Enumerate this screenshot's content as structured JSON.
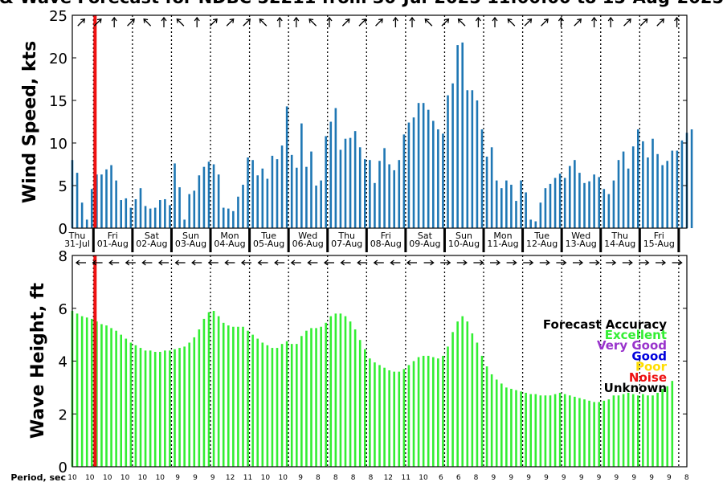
{
  "title": "& Wave Forecast for NDBC 52211 from 30-Jul-2025 11:00:00 to 15-Aug-2025",
  "colors": {
    "wind_bar": "#1f77b4",
    "wave_bar": "#33ee33",
    "now_line": "#ee1111",
    "excellent": "#33ee33",
    "very_good": "#9933cc",
    "good": "#0000dd",
    "poor": "#ffdd00",
    "noise": "#ee1111",
    "unknown": "#000000"
  },
  "legend": {
    "title": "Forecast Accuracy",
    "items": [
      {
        "label": "Excellent",
        "color": "#33ee33"
      },
      {
        "label": "Very Good",
        "color": "#9933cc"
      },
      {
        "label": "Good",
        "color": "#0000dd"
      },
      {
        "label": "Poor",
        "color": "#ffdd00"
      },
      {
        "label": "Noise",
        "color": "#ee1111"
      },
      {
        "label": "Unknown",
        "color": "#000000"
      }
    ]
  },
  "period_label": "Period, sec",
  "chart_data": [
    {
      "type": "bar",
      "name": "wind",
      "ylabel": "Wind Speed, kts",
      "ylim": [
        0,
        25
      ],
      "yticks": [
        0,
        5,
        10,
        15,
        20,
        25
      ],
      "x_unit": "hours since 30-Jul-2025 11:00 (3-hourly)",
      "days": [
        {
          "name": "Thu",
          "date": "31-Jul"
        },
        {
          "name": "Fri",
          "date": "01-Aug"
        },
        {
          "name": "Sat",
          "date": "02-Aug"
        },
        {
          "name": "Sun",
          "date": "03-Aug"
        },
        {
          "name": "Mon",
          "date": "04-Aug"
        },
        {
          "name": "Tue",
          "date": "05-Aug"
        },
        {
          "name": "Wed",
          "date": "06-Aug"
        },
        {
          "name": "Thu",
          "date": "07-Aug"
        },
        {
          "name": "Fri",
          "date": "08-Aug"
        },
        {
          "name": "Sat",
          "date": "09-Aug"
        },
        {
          "name": "Sun",
          "date": "10-Aug"
        },
        {
          "name": "Mon",
          "date": "11-Aug"
        },
        {
          "name": "Tue",
          "date": "12-Aug"
        },
        {
          "name": "Wed",
          "date": "13-Aug"
        },
        {
          "name": "Thu",
          "date": "14-Aug"
        },
        {
          "name": "Fri",
          "date": "15-Aug"
        }
      ],
      "values": [
        8.0,
        6.5,
        3.0,
        1.0,
        4.6,
        6.3,
        6.3,
        6.9,
        7.4,
        5.6,
        3.3,
        3.5,
        2.4,
        3.4,
        4.7,
        2.6,
        2.3,
        2.4,
        3.3,
        3.4,
        2.7,
        7.6,
        4.8,
        1.0,
        4.0,
        4.4,
        6.2,
        7.2,
        7.8,
        7.5,
        6.3,
        2.4,
        2.3,
        2.0,
        3.7,
        5.1,
        8.3,
        8.0,
        6.2,
        7.0,
        5.8,
        8.5,
        8.1,
        9.7,
        14.3,
        8.6,
        7.1,
        12.3,
        7.2,
        9.0,
        5.0,
        5.6,
        10.8,
        12.5,
        14.1,
        9.2,
        10.5,
        10.6,
        11.4,
        9.5,
        8.1,
        8.0,
        5.3,
        7.9,
        9.4,
        7.5,
        6.8,
        8.0,
        11.0,
        12.4,
        13.0,
        14.7,
        14.7,
        13.9,
        12.6,
        11.6,
        11.1,
        15.6,
        17.0,
        21.5,
        21.8,
        16.2,
        16.2,
        15.0,
        11.6,
        8.4,
        9.5,
        5.6,
        4.7,
        5.6,
        5.1,
        3.2,
        5.6,
        4.2,
        1.0,
        0.8,
        3.0,
        4.7,
        5.2,
        5.9,
        6.4,
        5.9,
        7.3,
        8.0,
        6.5,
        5.3,
        5.5,
        6.3,
        6.0,
        4.6,
        4.0,
        5.6,
        8.0,
        9.0,
        7.0,
        9.6,
        11.6,
        10.2,
        8.3,
        10.5,
        8.7,
        7.4,
        7.9,
        9.1,
        9.1,
        10.3,
        11.2,
        11.6
      ],
      "wind_dirs_deg": [
        225,
        225,
        180,
        225,
        135,
        180,
        135,
        180,
        225,
        225,
        225,
        135,
        180,
        180,
        135,
        180,
        225,
        225,
        225,
        180,
        180,
        135,
        225,
        135,
        180,
        180,
        135,
        225,
        225,
        180,
        225,
        180,
        180,
        225,
        225,
        225,
        180
      ]
    },
    {
      "type": "bar",
      "name": "wave",
      "ylabel": "Wave Height, ft",
      "ylim": [
        0,
        8
      ],
      "yticks": [
        0,
        2,
        4,
        6,
        8
      ],
      "x_unit": "hours since 30-Jul-2025 11:00 (3-hourly)",
      "values": [
        5.9,
        5.8,
        5.7,
        5.65,
        5.6,
        5.5,
        5.4,
        5.35,
        5.25,
        5.15,
        5.0,
        4.85,
        4.7,
        4.6,
        4.5,
        4.4,
        4.4,
        4.35,
        4.35,
        4.4,
        4.4,
        4.45,
        4.5,
        4.55,
        4.7,
        4.9,
        5.2,
        5.6,
        5.85,
        5.9,
        5.7,
        5.45,
        5.35,
        5.3,
        5.3,
        5.3,
        5.15,
        5.0,
        4.85,
        4.7,
        4.6,
        4.5,
        4.5,
        4.65,
        4.75,
        4.65,
        4.65,
        4.95,
        5.15,
        5.25,
        5.25,
        5.3,
        5.45,
        5.7,
        5.8,
        5.8,
        5.7,
        5.5,
        5.2,
        4.8,
        4.45,
        4.1,
        3.95,
        3.85,
        3.75,
        3.65,
        3.6,
        3.6,
        3.7,
        3.85,
        4.0,
        4.15,
        4.2,
        4.2,
        4.15,
        4.1,
        4.2,
        4.55,
        5.1,
        5.5,
        5.7,
        5.5,
        5.05,
        4.7,
        4.2,
        3.8,
        3.5,
        3.3,
        3.15,
        3.0,
        2.95,
        2.9,
        2.85,
        2.8,
        2.75,
        2.75,
        2.7,
        2.7,
        2.7,
        2.75,
        2.8,
        2.75,
        2.7,
        2.65,
        2.6,
        2.55,
        2.5,
        2.45,
        2.45,
        2.5,
        2.55,
        2.7,
        2.7,
        2.75,
        2.8,
        2.75,
        2.7,
        2.75,
        2.7,
        2.7,
        2.8,
        2.95,
        3.05,
        3.25
      ],
      "period_values": [
        "10",
        "10",
        "10",
        "10",
        "10",
        "10",
        "9",
        "9",
        "9",
        "12",
        "11",
        "10",
        "10",
        "9",
        "8",
        "8",
        "8",
        "8",
        "12",
        "11",
        "10",
        "6",
        "6",
        "8",
        "9",
        "9",
        "9",
        "9",
        "9",
        "9",
        "9",
        "9",
        "9",
        "9",
        "9",
        "8"
      ],
      "wave_dirs_deg": [
        90,
        90,
        90,
        90,
        90,
        90,
        90,
        90,
        90,
        90,
        90,
        90,
        90,
        90,
        90,
        90,
        90,
        90,
        90,
        90,
        90,
        270,
        270,
        270,
        270,
        270,
        270,
        270,
        270,
        270,
        270,
        270,
        270,
        270,
        270,
        270,
        270
      ]
    }
  ],
  "current_time_hour": 14
}
